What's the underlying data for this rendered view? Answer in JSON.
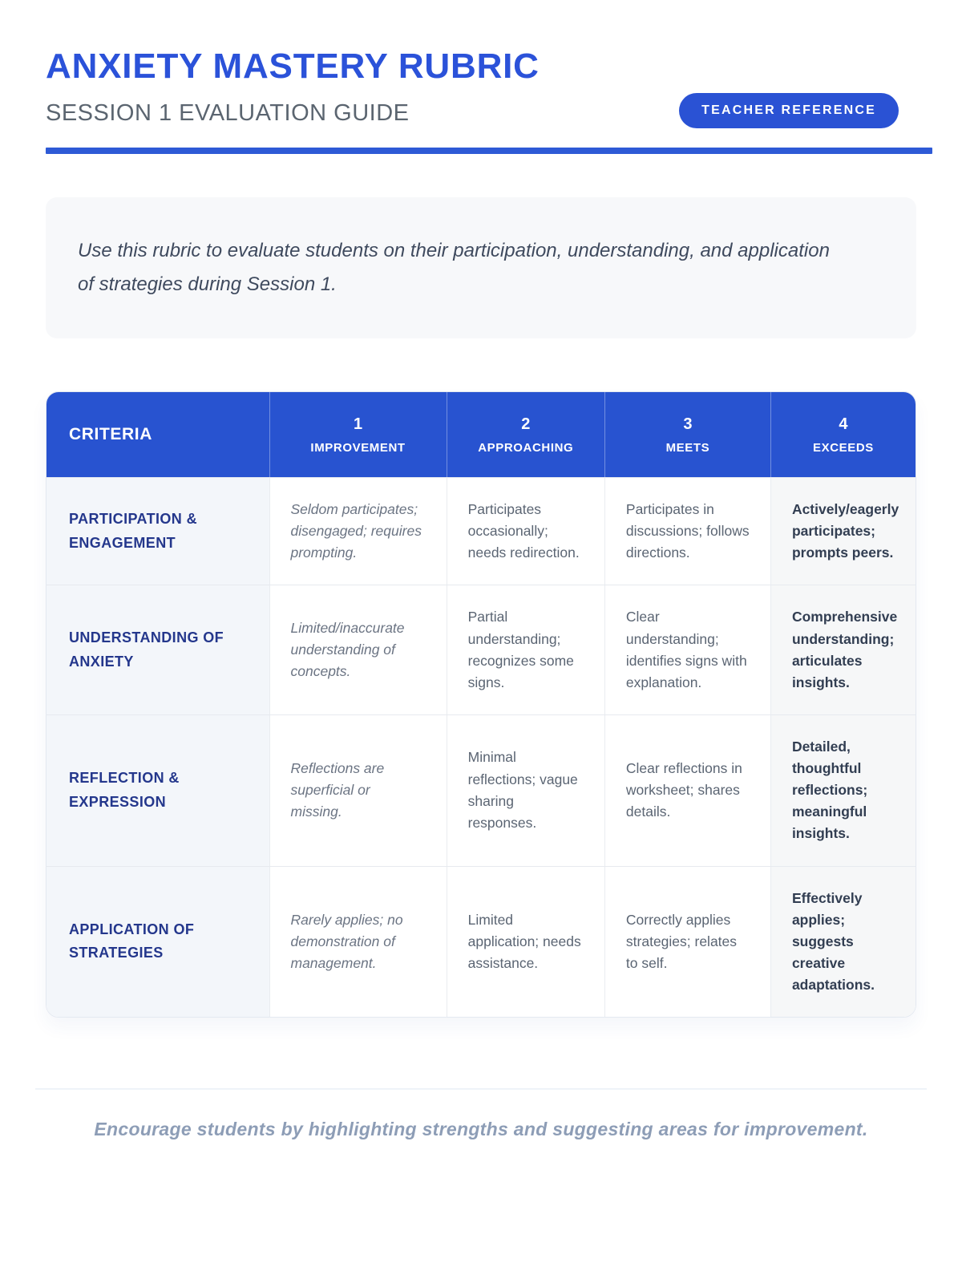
{
  "header": {
    "title": "ANXIETY MASTERY RUBRIC",
    "subtitle": "SESSION 1 EVALUATION GUIDE",
    "badge": "TEACHER REFERENCE"
  },
  "intro": {
    "text": "Use this rubric to evaluate students on their participation, understanding, and application of strategies during Session 1."
  },
  "rubric": {
    "criteria_header": "CRITERIA",
    "levels": [
      {
        "number": "1",
        "label": "IMPROVEMENT"
      },
      {
        "number": "2",
        "label": "APPROACHING"
      },
      {
        "number": "3",
        "label": "MEETS"
      },
      {
        "number": "4",
        "label": "EXCEEDS"
      }
    ],
    "rows": [
      {
        "criterion": "PARTICIPATION & ENGAGEMENT",
        "level1": "Seldom participates; disengaged; requires prompting.",
        "level2": "Participates occasionally; needs redirection.",
        "level3": "Participates in discussions; follows directions.",
        "level4": "Actively/eagerly participates; prompts peers."
      },
      {
        "criterion": "UNDERSTANDING OF ANXIETY",
        "level1": "Limited/inaccurate understanding of concepts.",
        "level2": "Partial understanding; recognizes some signs.",
        "level3": "Clear understanding; identifies signs with explanation.",
        "level4": "Comprehensive understanding; articulates insights."
      },
      {
        "criterion": "REFLECTION & EXPRESSION",
        "level1": "Reflections are superficial or missing.",
        "level2": "Minimal reflections; vague sharing responses.",
        "level3": "Clear reflections in worksheet; shares details.",
        "level4": "Detailed, thoughtful reflections; meaningful insights."
      },
      {
        "criterion": "APPLICATION OF STRATEGIES",
        "level1": "Rarely applies; no demonstration of management.",
        "level2": "Limited application; needs assistance.",
        "level3": "Correctly applies strategies; relates to self.",
        "level4": "Effectively applies; suggests creative adaptations."
      }
    ]
  },
  "footer": {
    "note": "Encourage students by highlighting strengths and suggesting areas for improvement."
  },
  "colors": {
    "accent_blue": "#2a52d4",
    "title_blue": "#2b52d9",
    "header_rule_blue": "#2e5ad6",
    "criterion_navy": "#24378c",
    "criteria_column_bg": "#f3f6fa",
    "exceeds_column_bg": "#f6f7f8",
    "intro_card_bg": "#f7f8fa",
    "body_text_gray": "#5b6573",
    "footer_text": "#8d9db6"
  }
}
